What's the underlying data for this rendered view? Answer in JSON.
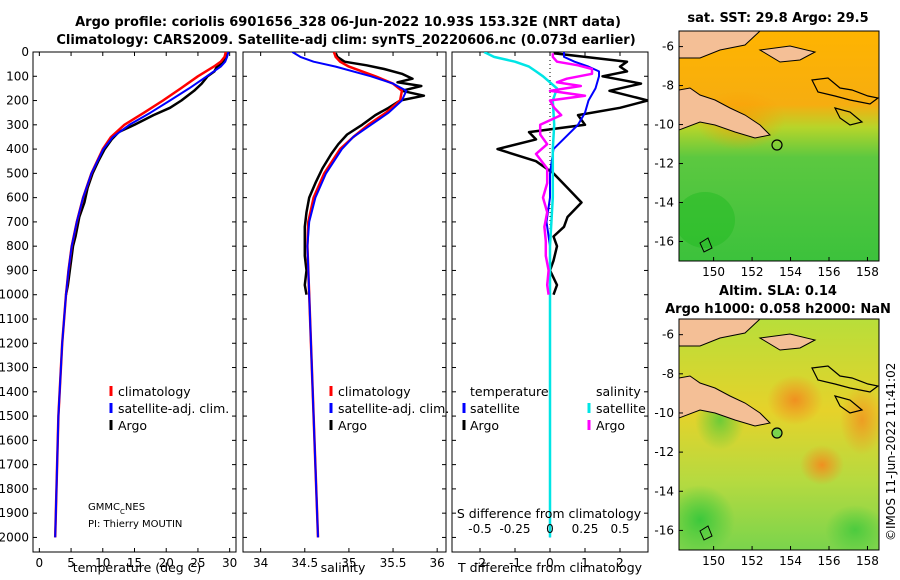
{
  "figure": {
    "title_line1": "Argo profile: coriolis 6901656_328 06-Jun-2022 10.93S 153.32E (NRT data)",
    "title_line2": "Climatology: CARS2009. Satellite-adj clim: synTS_20220606.nc (0.073d earlier)",
    "credit": "GMMC",
    "credit_sub": "C",
    "credit_tail": "NES",
    "pi": "PI: Thierry MOUTIN",
    "stamp": "©IMOS 11-Jun-2022 11:41:02",
    "colors": {
      "climatology": "#ff0000",
      "satellite": "#0000ff",
      "argo": "#000000",
      "s_satellite": "#00e5e5",
      "s_argo": "#ff00ff"
    }
  },
  "chart_data": [
    {
      "type": "line",
      "panel": "temperature",
      "xlabel": "temperature (deg C)",
      "xlim": [
        -1,
        31
      ],
      "xticks": [
        0,
        5,
        10,
        15,
        20,
        25,
        30
      ],
      "ylim": [
        2060,
        0
      ],
      "yticks": [
        0,
        100,
        200,
        300,
        400,
        500,
        600,
        700,
        800,
        900,
        1000,
        1100,
        1200,
        1300,
        1400,
        1500,
        1600,
        1700,
        1800,
        1900,
        2000
      ],
      "legend": [
        "climatology",
        "satellite-adj. clim.",
        "Argo"
      ],
      "series": [
        {
          "name": "climatology",
          "depth": [
            0,
            20,
            40,
            60,
            100,
            150,
            200,
            250,
            300,
            350,
            400,
            500,
            600,
            700,
            800,
            900,
            1000,
            1200,
            1500,
            2000
          ],
          "values": [
            29.4,
            29.2,
            28.6,
            27.5,
            25.0,
            22.3,
            19.5,
            16.5,
            13.4,
            11.3,
            10.0,
            8.2,
            6.9,
            5.9,
            5.1,
            4.6,
            4.2,
            3.6,
            3.0,
            2.5
          ]
        },
        {
          "name": "satellite-adj. clim.",
          "depth": [
            0,
            20,
            40,
            60,
            100,
            150,
            200,
            250,
            300,
            350,
            400,
            500,
            600,
            700,
            800,
            900,
            1000,
            1200,
            1500,
            2000
          ],
          "values": [
            29.8,
            29.6,
            29.3,
            28.6,
            26.4,
            23.6,
            20.6,
            17.5,
            14.2,
            11.6,
            10.1,
            8.2,
            6.9,
            5.9,
            5.1,
            4.6,
            4.2,
            3.6,
            3.0,
            2.5
          ]
        },
        {
          "name": "Argo",
          "depth": [
            5,
            20,
            40,
            60,
            80,
            100,
            130,
            160,
            200,
            230,
            260,
            300,
            330,
            360,
            400,
            450,
            500,
            560,
            620,
            680,
            720,
            760,
            800,
            860,
            900,
            960,
            1000
          ],
          "values": [
            29.5,
            29.4,
            29.1,
            28.0,
            27.6,
            26.5,
            25.6,
            24.4,
            22.4,
            20.6,
            18.0,
            15.0,
            12.5,
            11.4,
            10.3,
            9.3,
            8.4,
            7.6,
            7.1,
            6.3,
            6.0,
            5.7,
            5.3,
            5.0,
            4.8,
            4.5,
            4.2
          ]
        }
      ]
    },
    {
      "type": "line",
      "panel": "salinity",
      "xlabel": "salinity",
      "xlim": [
        33.8,
        36.1
      ],
      "xticks": [
        34,
        34.5,
        35,
        35.5,
        36
      ],
      "ylim": [
        2060,
        0
      ],
      "legend": [
        "climatology",
        "satellite-adj. clim.",
        "Argo"
      ],
      "series": [
        {
          "name": "climatology",
          "depth": [
            0,
            20,
            40,
            60,
            100,
            130,
            160,
            200,
            250,
            300,
            350,
            400,
            500,
            600,
            700,
            800,
            1000,
            1500,
            2000
          ],
          "values": [
            34.83,
            34.85,
            34.9,
            35.0,
            35.3,
            35.5,
            35.6,
            35.58,
            35.42,
            35.22,
            35.05,
            34.9,
            34.72,
            34.6,
            34.54,
            34.53,
            34.55,
            34.6,
            34.65
          ]
        },
        {
          "name": "satellite-adj. clim.",
          "depth": [
            0,
            20,
            40,
            60,
            100,
            130,
            160,
            200,
            250,
            300,
            350,
            400,
            500,
            600,
            700,
            800,
            1000,
            1500,
            2000
          ],
          "values": [
            34.36,
            34.45,
            34.6,
            34.85,
            35.25,
            35.5,
            35.65,
            35.6,
            35.45,
            35.25,
            35.05,
            34.92,
            34.74,
            34.62,
            34.55,
            34.53,
            34.55,
            34.6,
            34.65
          ]
        },
        {
          "name": "Argo",
          "depth": [
            5,
            20,
            40,
            55,
            70,
            90,
            110,
            125,
            140,
            160,
            180,
            200,
            230,
            260,
            300,
            340,
            380,
            420,
            480,
            540,
            600,
            660,
            720,
            780,
            840,
            900,
            960,
            1000
          ],
          "values": [
            34.85,
            34.87,
            34.95,
            35.2,
            35.4,
            35.6,
            35.72,
            35.55,
            35.82,
            35.6,
            35.85,
            35.58,
            35.45,
            35.3,
            35.15,
            34.98,
            34.88,
            34.8,
            34.7,
            34.62,
            34.55,
            34.52,
            34.5,
            34.5,
            34.5,
            34.52,
            34.5,
            34.52
          ]
        }
      ]
    },
    {
      "type": "line",
      "panel": "difference",
      "xlabel": "T difference from climatology",
      "top_xlabel": "S difference from climatology",
      "xlim": [
        -2.8,
        2.8
      ],
      "xticks": [
        -2,
        -1,
        0,
        1,
        2
      ],
      "top_xticks": [
        -0.5,
        -0.25,
        0,
        0.25,
        0.5
      ],
      "ylim": [
        2060,
        0
      ],
      "legend_temperature_title": "temperature",
      "legend_salinity_title": "salinity",
      "legend_temperature": [
        "satellite",
        "Argo"
      ],
      "legend_salinity": [
        "satellite",
        "Argo"
      ],
      "series": [
        {
          "name": "temperature satellite",
          "depth": [
            0,
            20,
            40,
            60,
            80,
            100,
            150,
            200,
            250,
            300,
            400,
            500,
            600,
            700,
            800,
            900,
            1000,
            1500,
            2000
          ],
          "values": [
            0.4,
            0.4,
            0.7,
            1.1,
            1.4,
            1.4,
            1.3,
            1.1,
            1.0,
            0.8,
            0.1,
            0.0,
            0.0,
            -0.1,
            0.0,
            0.0,
            0.0,
            0.0,
            0.0
          ]
        },
        {
          "name": "temperature Argo",
          "depth": [
            5,
            20,
            40,
            60,
            80,
            100,
            130,
            160,
            200,
            230,
            260,
            300,
            330,
            360,
            400,
            450,
            500,
            560,
            620,
            680,
            720,
            760,
            800,
            860,
            900,
            960,
            1000
          ],
          "values": [
            0.1,
            1.0,
            2.2,
            2.0,
            2.2,
            1.5,
            2.6,
            1.7,
            2.8,
            2.0,
            0.8,
            1.0,
            -0.6,
            -0.4,
            -1.5,
            -0.4,
            0.1,
            0.5,
            0.9,
            0.5,
            0.4,
            0.1,
            0.2,
            0.1,
            0.0,
            0.2,
            0.1
          ]
        },
        {
          "name": "salinity satellite",
          "depth": [
            0,
            20,
            40,
            60,
            80,
            100,
            150,
            200,
            300,
            400,
            500,
            600,
            700,
            800,
            1000,
            1500,
            2000
          ],
          "values": [
            -0.47,
            -0.4,
            -0.25,
            -0.15,
            -0.1,
            -0.05,
            0.05,
            0.02,
            0.03,
            0.02,
            0.02,
            0.02,
            0.01,
            0.0,
            0.0,
            0.0,
            0.0
          ]
        },
        {
          "name": "salinity Argo",
          "depth": [
            5,
            20,
            40,
            55,
            70,
            90,
            110,
            125,
            140,
            160,
            180,
            200,
            230,
            260,
            300,
            340,
            380,
            420,
            480,
            540,
            600,
            660,
            720,
            780,
            840,
            900,
            960,
            1000
          ],
          "values": [
            0.02,
            0.02,
            0.05,
            0.2,
            0.3,
            0.3,
            0.12,
            0.05,
            0.22,
            0.0,
            0.25,
            0.0,
            0.03,
            0.08,
            -0.07,
            -0.07,
            -0.02,
            -0.1,
            -0.02,
            -0.02,
            -0.05,
            -0.02,
            -0.04,
            -0.03,
            -0.03,
            -0.01,
            -0.02,
            -0.01
          ]
        }
      ]
    },
    {
      "type": "heatmap",
      "panel": "sst_map",
      "title": "sat. SST: 29.8 Argo: 29.5",
      "xlim": [
        148.2,
        158.6
      ],
      "ylim": [
        -17.0,
        -5.2
      ],
      "xticks": [
        150,
        152,
        154,
        156,
        158
      ],
      "yticks": [
        -6,
        -8,
        -10,
        -12,
        -14,
        -16
      ],
      "argo_position": {
        "lon": 153.32,
        "lat": -10.93
      }
    },
    {
      "type": "heatmap",
      "panel": "sla_map",
      "title": "Altim. SLA: 0.14",
      "subtitle": "Argo h1000: 0.058 h2000: NaN",
      "xlim": [
        148.2,
        158.6
      ],
      "ylim": [
        -17.0,
        -5.2
      ],
      "xticks": [
        150,
        152,
        154,
        156,
        158
      ],
      "yticks": [
        -6,
        -8,
        -10,
        -12,
        -14,
        -16
      ],
      "argo_position": {
        "lon": 153.32,
        "lat": -10.93
      }
    }
  ]
}
